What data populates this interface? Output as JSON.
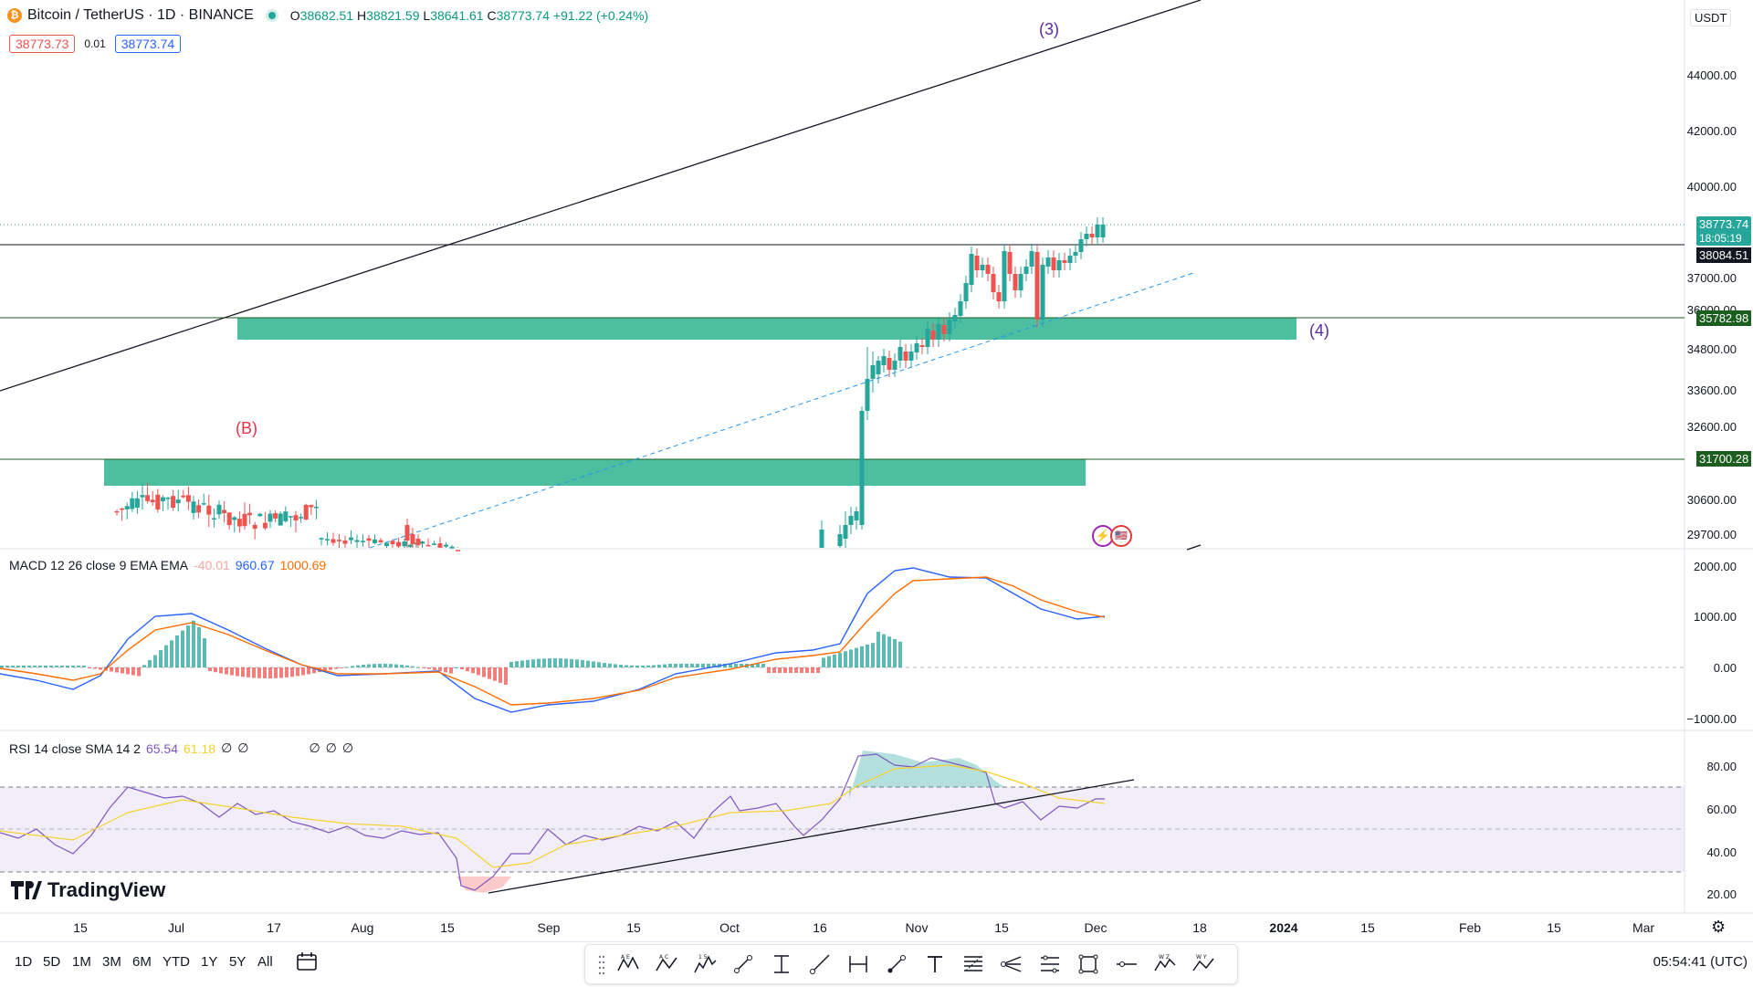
{
  "header": {
    "symbol_title": "Bitcoin / TetherUS · 1D · BINANCE",
    "open_label": "O",
    "open": "38682.51",
    "high_label": "H",
    "high": "38821.59",
    "low_label": "L",
    "low": "38641.61",
    "close_label": "C",
    "close": "38773.74",
    "change": "+91.22 (+0.24%)",
    "bid": "38773.73",
    "spread": "0.01",
    "ask": "38773.74"
  },
  "colors": {
    "up": "#26a69a",
    "down": "#ef5350",
    "zone": "#4dbfa0",
    "wave_blue": "#5b2ca0",
    "wave_red": "#e8304a",
    "macd": "#2962ff",
    "signal": "#ff6d00",
    "rsi": "#7e57c2",
    "rsi_ma": "#f5d22c"
  },
  "price_axis": {
    "currency": "USDT",
    "labels": [
      "44000.00",
      "42000.00",
      "40000.00",
      "37000.00",
      "36000.00",
      "34800.00",
      "33600.00",
      "32600.00",
      "30600.00",
      "29700.00"
    ],
    "current_price": "38773.74",
    "countdown": "18:05:19",
    "level_line": "38084.51",
    "zone_top": "35782.98",
    "zone_low": "31700.28"
  },
  "waves": {
    "w3": "(3)",
    "w4": "(4)",
    "wb": "(B)"
  },
  "macd": {
    "title": "MACD 12 26 close 9 EMA EMA",
    "hist": "-40.01",
    "macd": "960.67",
    "signal": "1000.69",
    "axis": [
      "2000.00",
      "1000.00",
      "0.00",
      "−1000.00"
    ]
  },
  "rsi": {
    "title": "RSI 14 close SMA 14 2",
    "rsi": "65.54",
    "ma": "61.18",
    "placeholders": [
      "∅",
      "∅",
      "∅",
      "∅",
      "∅"
    ],
    "axis": [
      "80.00",
      "60.00",
      "40.00",
      "20.00"
    ]
  },
  "watermark": "TradingView",
  "time_axis": [
    "15",
    "Jul",
    "17",
    "Aug",
    "15",
    "Sep",
    "15",
    "Oct",
    "16",
    "Nov",
    "15",
    "Dec",
    "18",
    "2024",
    "15",
    "Feb",
    "15",
    "Mar"
  ],
  "ranges": [
    "1D",
    "5D",
    "1M",
    "3M",
    "6M",
    "YTD",
    "1Y",
    "5Y",
    "All"
  ],
  "clock": "05:54:41 (UTC)"
}
